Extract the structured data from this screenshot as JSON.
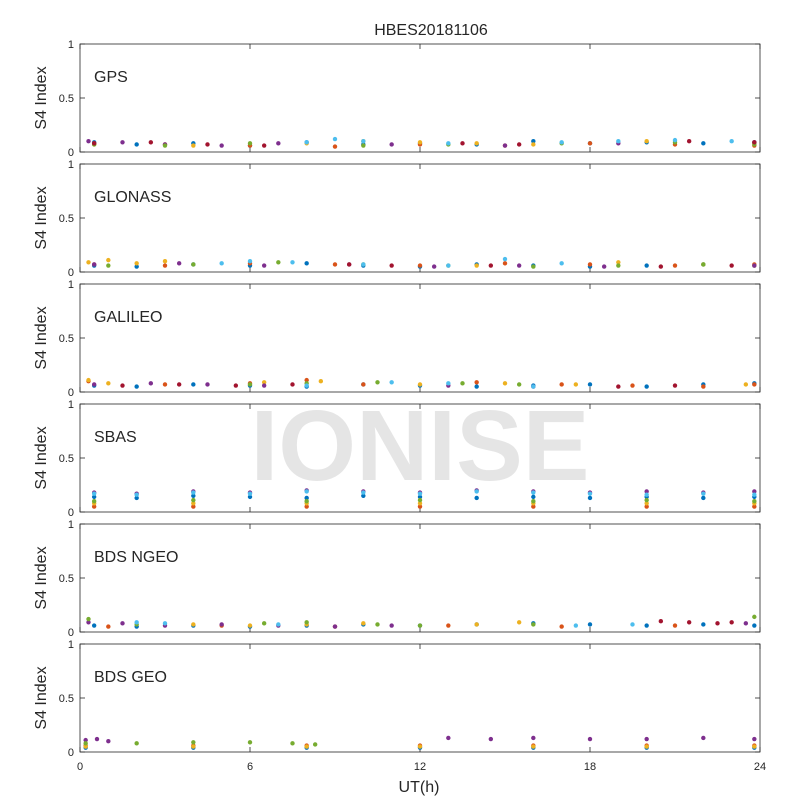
{
  "chart_data": {
    "type": "scatter",
    "title": "HBES20181106",
    "xlabel": "UT(h)",
    "xlim": [
      0,
      24
    ],
    "xticks": [
      "0",
      "6",
      "12",
      "18",
      "24"
    ],
    "watermark": "IONISE",
    "colors": [
      "#0072BD",
      "#D95319",
      "#EDB120",
      "#7E2F8E",
      "#77AC30",
      "#4DBEEE",
      "#A2142F"
    ],
    "panels": [
      {
        "label": "GPS",
        "ylabel": "S4 Index",
        "ylim": [
          0,
          1
        ],
        "yticks": [
          "0",
          "0.5",
          "1"
        ],
        "series": [
          {
            "x": [
              0.5,
              2.0,
              4.0,
              6.0,
              8.0,
              10.0,
              12.0,
              14.0,
              16.0,
              18.0,
              20.0,
              22.0,
              23.8
            ],
            "y": [
              0.09,
              0.07,
              0.08,
              0.06,
              0.09,
              0.07,
              0.08,
              0.07,
              0.1,
              0.08,
              0.09,
              0.08,
              0.09
            ]
          },
          {
            "x": [
              0.5,
              3.0,
              6.0,
              9.0,
              12.0,
              15.0,
              18.0,
              21.0,
              23.8
            ],
            "y": [
              0.08,
              0.07,
              0.06,
              0.05,
              0.07,
              0.06,
              0.08,
              0.07,
              0.06
            ]
          },
          {
            "x": [
              0.5,
              4.0,
              8.0,
              10.0,
              12.0,
              14.0,
              16.0,
              20.0,
              23.8
            ],
            "y": [
              0.07,
              0.06,
              0.08,
              0.1,
              0.09,
              0.08,
              0.07,
              0.1,
              0.08
            ]
          },
          {
            "x": [
              0.3,
              1.5,
              3.0,
              5.0,
              7.0,
              11.0,
              15.0,
              19.0,
              23.8
            ],
            "y": [
              0.1,
              0.09,
              0.07,
              0.06,
              0.08,
              0.07,
              0.06,
              0.08,
              0.09
            ]
          },
          {
            "x": [
              0.5,
              3.0,
              6.0,
              10.0,
              13.0,
              17.0,
              21.0,
              23.8
            ],
            "y": [
              0.07,
              0.06,
              0.08,
              0.06,
              0.07,
              0.08,
              0.09,
              0.07
            ]
          },
          {
            "x": [
              8.0,
              9.0,
              10.0,
              13.0,
              17.0,
              19.0,
              21.0,
              23.0
            ],
            "y": [
              0.09,
              0.12,
              0.1,
              0.08,
              0.09,
              0.1,
              0.11,
              0.1
            ]
          },
          {
            "x": [
              0.5,
              2.5,
              4.5,
              6.5,
              13.5,
              15.5,
              21.5,
              23.8
            ],
            "y": [
              0.08,
              0.09,
              0.07,
              0.06,
              0.08,
              0.07,
              0.1,
              0.09
            ]
          }
        ]
      },
      {
        "label": "GLONASS",
        "ylabel": "S4 Index",
        "ylim": [
          0,
          1
        ],
        "yticks": [
          "0",
          "0.5",
          "1"
        ],
        "series": [
          {
            "x": [
              0.5,
              2.0,
              4.0,
              6.0,
              8.0,
              10.0,
              12.0,
              14.0,
              16.0,
              18.0,
              20.0,
              22.0,
              23.8
            ],
            "y": [
              0.06,
              0.05,
              0.07,
              0.06,
              0.08,
              0.06,
              0.05,
              0.07,
              0.06,
              0.05,
              0.06,
              0.07,
              0.06
            ]
          },
          {
            "x": [
              0.5,
              3.0,
              6.0,
              9.0,
              12.0,
              15.0,
              18.0,
              21.0,
              23.8
            ],
            "y": [
              0.07,
              0.06,
              0.08,
              0.07,
              0.06,
              0.08,
              0.07,
              0.06,
              0.07
            ]
          },
          {
            "x": [
              0.3,
              1.0,
              2.0,
              3.0,
              14.0,
              19.0,
              22.0,
              23.8
            ],
            "y": [
              0.09,
              0.11,
              0.08,
              0.1,
              0.06,
              0.09,
              0.07,
              0.06
            ]
          },
          {
            "x": [
              0.5,
              3.5,
              6.5,
              9.5,
              12.5,
              15.5,
              18.5,
              23.8
            ],
            "y": [
              0.07,
              0.08,
              0.06,
              0.07,
              0.05,
              0.06,
              0.05,
              0.06
            ]
          },
          {
            "x": [
              1.0,
              4.0,
              7.0,
              10.0,
              13.0,
              16.0,
              19.0,
              22.0
            ],
            "y": [
              0.06,
              0.07,
              0.09,
              0.07,
              0.06,
              0.05,
              0.06,
              0.07
            ]
          },
          {
            "x": [
              5.0,
              6.0,
              7.5,
              10.0,
              13.0,
              15.0,
              17.0
            ],
            "y": [
              0.08,
              0.1,
              0.09,
              0.07,
              0.06,
              0.12,
              0.08
            ]
          },
          {
            "x": [
              9.5,
              11.0,
              14.5,
              20.5,
              23.0
            ],
            "y": [
              0.07,
              0.06,
              0.06,
              0.05,
              0.06
            ]
          }
        ]
      },
      {
        "label": "GALILEO",
        "ylabel": "S4 Index",
        "ylim": [
          0,
          1
        ],
        "yticks": [
          "0",
          "0.5",
          "1"
        ],
        "series": [
          {
            "x": [
              0.5,
              2.0,
              4.0,
              6.0,
              8.0,
              10.0,
              12.0,
              14.0,
              16.0,
              18.0,
              20.0,
              22.0,
              23.8
            ],
            "y": [
              0.06,
              0.05,
              0.07,
              0.06,
              0.05,
              0.07,
              0.06,
              0.05,
              0.06,
              0.07,
              0.05,
              0.07,
              0.08
            ]
          },
          {
            "x": [
              0.3,
              3.0,
              6.0,
              8.0,
              10.0,
              14.0,
              17.0,
              19.5,
              22.0,
              23.8
            ],
            "y": [
              0.1,
              0.07,
              0.08,
              0.11,
              0.07,
              0.09,
              0.07,
              0.06,
              0.05,
              0.07
            ]
          },
          {
            "x": [
              0.3,
              1.0,
              6.5,
              8.5,
              12.0,
              15.0,
              17.5,
              23.5
            ],
            "y": [
              0.11,
              0.08,
              0.09,
              0.1,
              0.07,
              0.08,
              0.07,
              0.07
            ]
          },
          {
            "x": [
              0.5,
              2.5,
              4.5,
              6.5,
              13.0,
              16.0
            ],
            "y": [
              0.07,
              0.08,
              0.07,
              0.06,
              0.06,
              0.05
            ]
          },
          {
            "x": [
              6.0,
              8.0,
              10.5,
              13.5,
              15.5
            ],
            "y": [
              0.07,
              0.08,
              0.09,
              0.08,
              0.07
            ]
          },
          {
            "x": [
              8.0,
              11.0,
              13.0,
              16.0
            ],
            "y": [
              0.06,
              0.09,
              0.08,
              0.05
            ]
          },
          {
            "x": [
              1.5,
              3.5,
              5.5,
              7.5,
              19.0,
              21.0
            ],
            "y": [
              0.06,
              0.07,
              0.06,
              0.07,
              0.05,
              0.06
            ]
          }
        ]
      },
      {
        "label": "SBAS",
        "ylabel": "S4 Index",
        "ylim": [
          0,
          1
        ],
        "yticks": [
          "0",
          "0.5",
          "1"
        ],
        "series": [
          {
            "x": [
              0.5,
              2.0,
              4.0,
              6.0,
              8.0,
              10.0,
              12.0,
              14.0,
              16.0,
              18.0,
              20.0,
              22.0,
              23.8
            ],
            "y": [
              0.14,
              0.13,
              0.15,
              0.14,
              0.13,
              0.15,
              0.14,
              0.13,
              0.14,
              0.13,
              0.14,
              0.13,
              0.14
            ]
          },
          {
            "x": [
              0.5,
              4.0,
              8.0,
              12.0,
              16.0,
              20.0,
              23.8
            ],
            "y": [
              0.05,
              0.05,
              0.05,
              0.05,
              0.05,
              0.05,
              0.05
            ]
          },
          {
            "x": [
              0.5,
              4.0,
              8.0,
              12.0,
              16.0,
              20.0,
              23.8
            ],
            "y": [
              0.08,
              0.08,
              0.08,
              0.08,
              0.08,
              0.08,
              0.08
            ]
          },
          {
            "x": [
              0.5,
              2.0,
              4.0,
              6.0,
              8.0,
              10.0,
              12.0,
              14.0,
              16.0,
              18.0,
              20.0,
              22.0,
              23.8
            ],
            "y": [
              0.18,
              0.17,
              0.19,
              0.18,
              0.2,
              0.19,
              0.18,
              0.2,
              0.19,
              0.18,
              0.19,
              0.18,
              0.19
            ]
          },
          {
            "x": [
              0.5,
              4.0,
              8.0,
              12.0,
              16.0,
              20.0,
              23.8
            ],
            "y": [
              0.1,
              0.11,
              0.1,
              0.11,
              0.1,
              0.11,
              0.1
            ]
          },
          {
            "x": [
              0.5,
              2.0,
              4.0,
              6.0,
              8.0,
              10.0,
              12.0,
              14.0,
              16.0,
              18.0,
              20.0,
              22.0,
              23.8
            ],
            "y": [
              0.17,
              0.16,
              0.18,
              0.17,
              0.19,
              0.18,
              0.17,
              0.19,
              0.18,
              0.17,
              0.16,
              0.17,
              0.16
            ]
          }
        ]
      },
      {
        "label": "BDS NGEO",
        "ylabel": "S4 Index",
        "ylim": [
          0,
          1
        ],
        "yticks": [
          "0",
          "0.5",
          "1"
        ],
        "series": [
          {
            "x": [
              0.5,
              2.0,
              4.0,
              6.0,
              8.0,
              10.0,
              12.0,
              14.0,
              16.0,
              18.0,
              20.0,
              22.0,
              23.8
            ],
            "y": [
              0.06,
              0.05,
              0.06,
              0.05,
              0.06,
              0.07,
              0.06,
              0.07,
              0.08,
              0.07,
              0.06,
              0.07,
              0.06
            ]
          },
          {
            "x": [
              1.0,
              5.0,
              9.0,
              13.0,
              17.0,
              21.0
            ],
            "y": [
              0.05,
              0.06,
              0.05,
              0.06,
              0.05,
              0.06
            ]
          },
          {
            "x": [
              4.0,
              6.0,
              8.0,
              10.0,
              14.0,
              15.5
            ],
            "y": [
              0.07,
              0.06,
              0.07,
              0.08,
              0.07,
              0.09
            ]
          },
          {
            "x": [
              0.3,
              1.5,
              3.0,
              5.0,
              7.0,
              9.0,
              11.0,
              23.5
            ],
            "y": [
              0.09,
              0.08,
              0.06,
              0.07,
              0.06,
              0.05,
              0.06,
              0.08
            ]
          },
          {
            "x": [
              0.3,
              2.0,
              6.5,
              8.0,
              10.5,
              12.0,
              16.0,
              23.8
            ],
            "y": [
              0.12,
              0.07,
              0.08,
              0.09,
              0.07,
              0.06,
              0.07,
              0.14
            ]
          },
          {
            "x": [
              2.0,
              3.0,
              7.0,
              17.5,
              19.5
            ],
            "y": [
              0.09,
              0.08,
              0.07,
              0.06,
              0.07
            ]
          },
          {
            "x": [
              20.5,
              21.5,
              22.5,
              23.0
            ],
            "y": [
              0.1,
              0.09,
              0.08,
              0.09
            ]
          }
        ]
      },
      {
        "label": "BDS GEO",
        "ylabel": "S4 Index",
        "ylim": [
          0,
          1
        ],
        "yticks": [
          "0",
          "0.5",
          "1"
        ],
        "series": [
          {
            "x": [
              0.2,
              4.0,
              8.0,
              12.0,
              16.0,
              20.0,
              23.8
            ],
            "y": [
              0.04,
              0.04,
              0.04,
              0.04,
              0.04,
              0.04,
              0.04
            ]
          },
          {
            "x": [
              0.2,
              4.0,
              8.0,
              12.0,
              16.0,
              20.0,
              23.8
            ],
            "y": [
              0.06,
              0.06,
              0.06,
              0.06,
              0.06,
              0.06,
              0.06
            ]
          },
          {
            "x": [
              0.2,
              4.0,
              8.0,
              12.0,
              16.0,
              20.0,
              23.8
            ],
            "y": [
              0.05,
              0.05,
              0.05,
              0.05,
              0.05,
              0.05,
              0.05
            ]
          },
          {
            "x": [
              0.2,
              0.6,
              1.0,
              13.0,
              14.5,
              16.0,
              18.0,
              20.0,
              22.0,
              23.8
            ],
            "y": [
              0.11,
              0.12,
              0.1,
              0.13,
              0.12,
              0.13,
              0.12,
              0.12,
              0.13,
              0.12
            ]
          },
          {
            "x": [
              0.2,
              2.0,
              4.0,
              6.0,
              7.5,
              8.3
            ],
            "y": [
              0.08,
              0.08,
              0.09,
              0.09,
              0.08,
              0.07
            ]
          }
        ]
      }
    ]
  }
}
